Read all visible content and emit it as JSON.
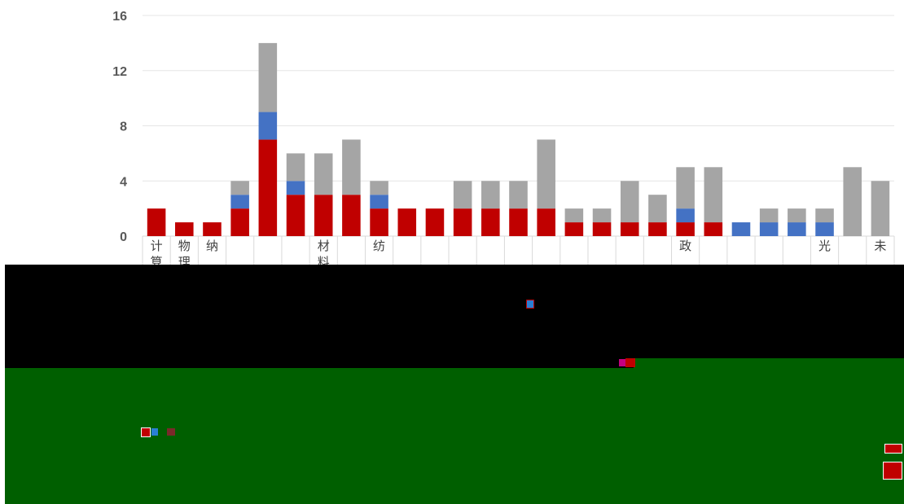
{
  "chart_data": {
    "type": "bar",
    "stacked": true,
    "title": "",
    "xlabel": "",
    "ylabel": "",
    "ylim": [
      0,
      16
    ],
    "yticks": [
      0,
      4,
      8,
      12,
      16
    ],
    "grid": true,
    "legend": "none",
    "categories": [
      "计算",
      "物理",
      "纳",
      "",
      "",
      "",
      "材料",
      "",
      "纺",
      "",
      "",
      "",
      "",
      "",
      "",
      "",
      "",
      "",
      "",
      "政",
      "",
      "",
      "",
      "",
      "光",
      "",
      "未"
    ],
    "series": [
      {
        "color": "#c00000",
        "values": [
          2,
          1,
          1,
          2,
          7,
          3,
          3,
          3,
          2,
          2,
          2,
          2,
          2,
          2,
          2,
          1,
          1,
          1,
          1,
          1,
          1,
          0,
          0,
          0,
          0,
          0,
          0
        ]
      },
      {
        "color": "#4472c4",
        "values": [
          0,
          0,
          0,
          1,
          2,
          1,
          0,
          0,
          1,
          0,
          0,
          0,
          0,
          0,
          0,
          0,
          0,
          0,
          0,
          1,
          0,
          1,
          1,
          1,
          1,
          0,
          0
        ]
      },
      {
        "color": "#a5a5a5",
        "values": [
          0,
          0,
          0,
          1,
          5,
          2,
          3,
          4,
          1,
          0,
          0,
          2,
          2,
          2,
          5,
          1,
          1,
          3,
          2,
          3,
          4,
          0,
          1,
          1,
          1,
          5,
          4
        ]
      }
    ]
  }
}
